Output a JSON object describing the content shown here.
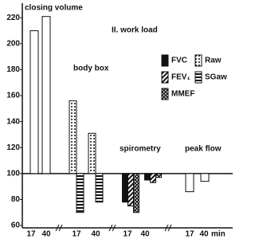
{
  "chart_data": {
    "type": "bar",
    "annotation": "II. work load",
    "categories": [
      "17",
      "40",
      "17",
      "40",
      "17",
      "40",
      "17",
      "40"
    ],
    "x_unit": "min",
    "group_labels": [
      "closing volume",
      "body box",
      "spirometry",
      "peak flow"
    ],
    "baseline": 100,
    "ylim": [
      60,
      230
    ],
    "yticks": [
      60,
      80,
      100,
      120,
      140,
      160,
      180,
      200,
      220
    ],
    "series": [
      {
        "name": "FVC",
        "color": "#111111",
        "pattern": "solid",
        "values": [
          null,
          null,
          null,
          null,
          78,
          95,
          null,
          null
        ]
      },
      {
        "name": "FEV₁",
        "color": "#111111",
        "pattern": "diagonal",
        "values": [
          null,
          null,
          null,
          null,
          75,
          93,
          null,
          null
        ]
      },
      {
        "name": "MMEF",
        "color": "#111111",
        "pattern": "cross",
        "values": [
          null,
          null,
          null,
          null,
          70,
          97,
          null,
          null
        ]
      },
      {
        "name": "Raw",
        "color": "#111111",
        "pattern": "dots",
        "values": [
          null,
          null,
          156,
          131,
          null,
          null,
          null,
          null
        ]
      },
      {
        "name": "SGaw",
        "color": "#111111",
        "pattern": "horizontal",
        "values": [
          null,
          null,
          70,
          78,
          null,
          null,
          null,
          null
        ]
      }
    ],
    "unlabeled_series": [
      {
        "color": "#ffffff",
        "values": [
          210,
          221,
          null,
          null,
          null,
          null,
          86,
          94
        ]
      }
    ]
  }
}
